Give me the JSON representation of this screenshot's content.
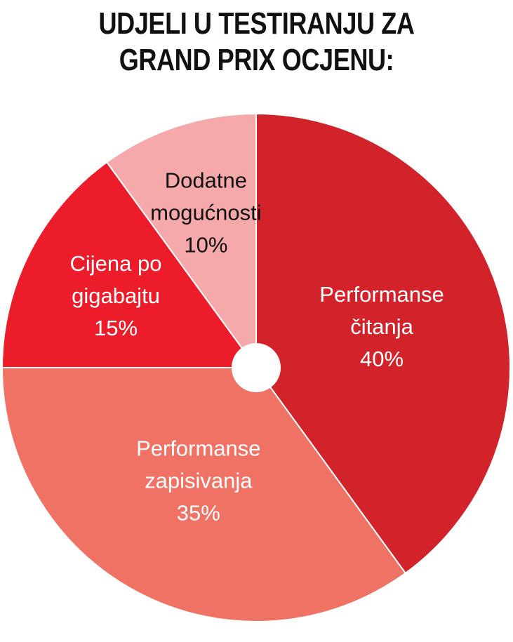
{
  "title": {
    "line1": "UDJELI U TESTIRANJU ZA",
    "line2": "GRAND PRIX OCJENU:"
  },
  "chart_data": {
    "type": "pie",
    "title": "UDJELI U TESTIRANJU ZA GRAND PRIX OCJENU:",
    "slices": [
      {
        "label_lines": [
          "Performanse",
          "čitanja"
        ],
        "value": 40,
        "value_label": "40%",
        "color": "#d2232b",
        "text_color": "#ffffff"
      },
      {
        "label_lines": [
          "Performanse",
          "zapisivanja"
        ],
        "value": 35,
        "value_label": "35%",
        "color": "#f07264",
        "text_color": "#ffffff"
      },
      {
        "label_lines": [
          "Cijena po",
          "gigabajtu"
        ],
        "value": 15,
        "value_label": "15%",
        "color": "#ec1c2b",
        "text_color": "#ffffff"
      },
      {
        "label_lines": [
          "Dodatne",
          "mogućnosti"
        ],
        "value": 10,
        "value_label": "10%",
        "color": "#f5a9aa",
        "text_color": "#111111"
      }
    ],
    "donut_hole": true
  }
}
